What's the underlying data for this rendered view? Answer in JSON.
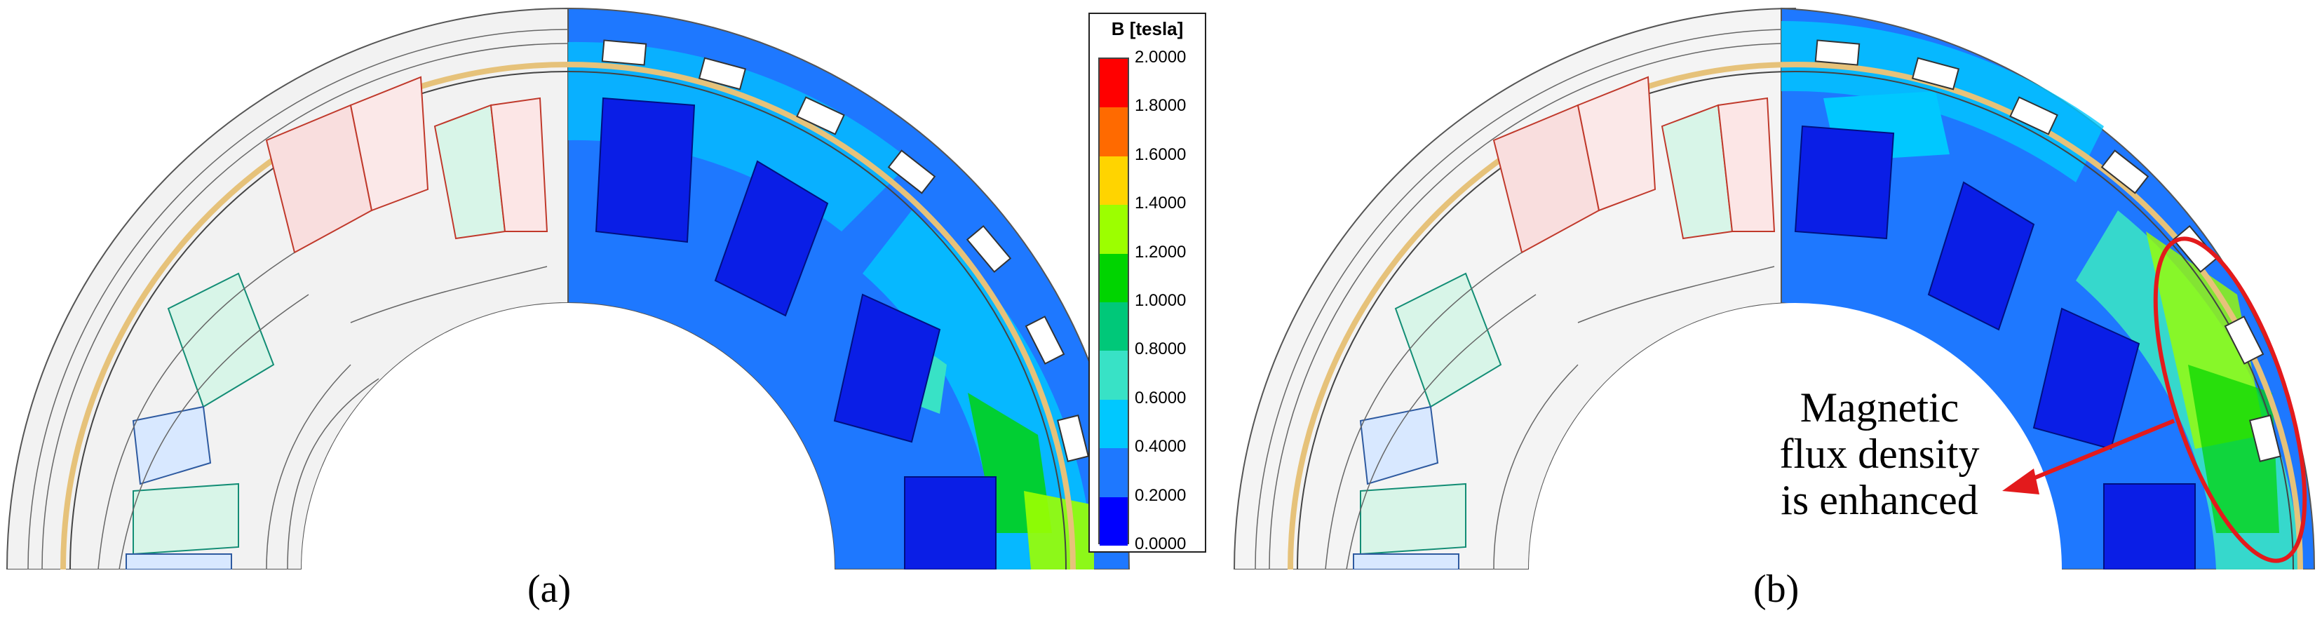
{
  "panels": [
    {
      "label": "(a)"
    },
    {
      "label": "(b)"
    }
  ],
  "legend": {
    "title": "B [tesla]",
    "ticks": [
      "2.0000",
      "1.8000",
      "1.6000",
      "1.4000",
      "1.2000",
      "1.0000",
      "0.8000",
      "0.6000",
      "0.4000",
      "0.2000",
      "0.0000"
    ],
    "colors": [
      "#ff0000",
      "#ff6a00",
      "#ffd400",
      "#9cff00",
      "#00d400",
      "#00c879",
      "#38e2c6",
      "#00c8ff",
      "#1e78ff",
      "#0000ff"
    ]
  },
  "annotation": {
    "lines": [
      "Magnetic",
      "flux density",
      "is enhanced"
    ],
    "color": "#e31a1c"
  },
  "colors": {
    "field_low": "#0a1ee6",
    "field_mid": "#1e78ff",
    "field_high": "#00c8ff",
    "coil_red": "#f5c8c8",
    "coil_green": "#c8f0e0",
    "coil_blue": "#d8e8ff"
  }
}
